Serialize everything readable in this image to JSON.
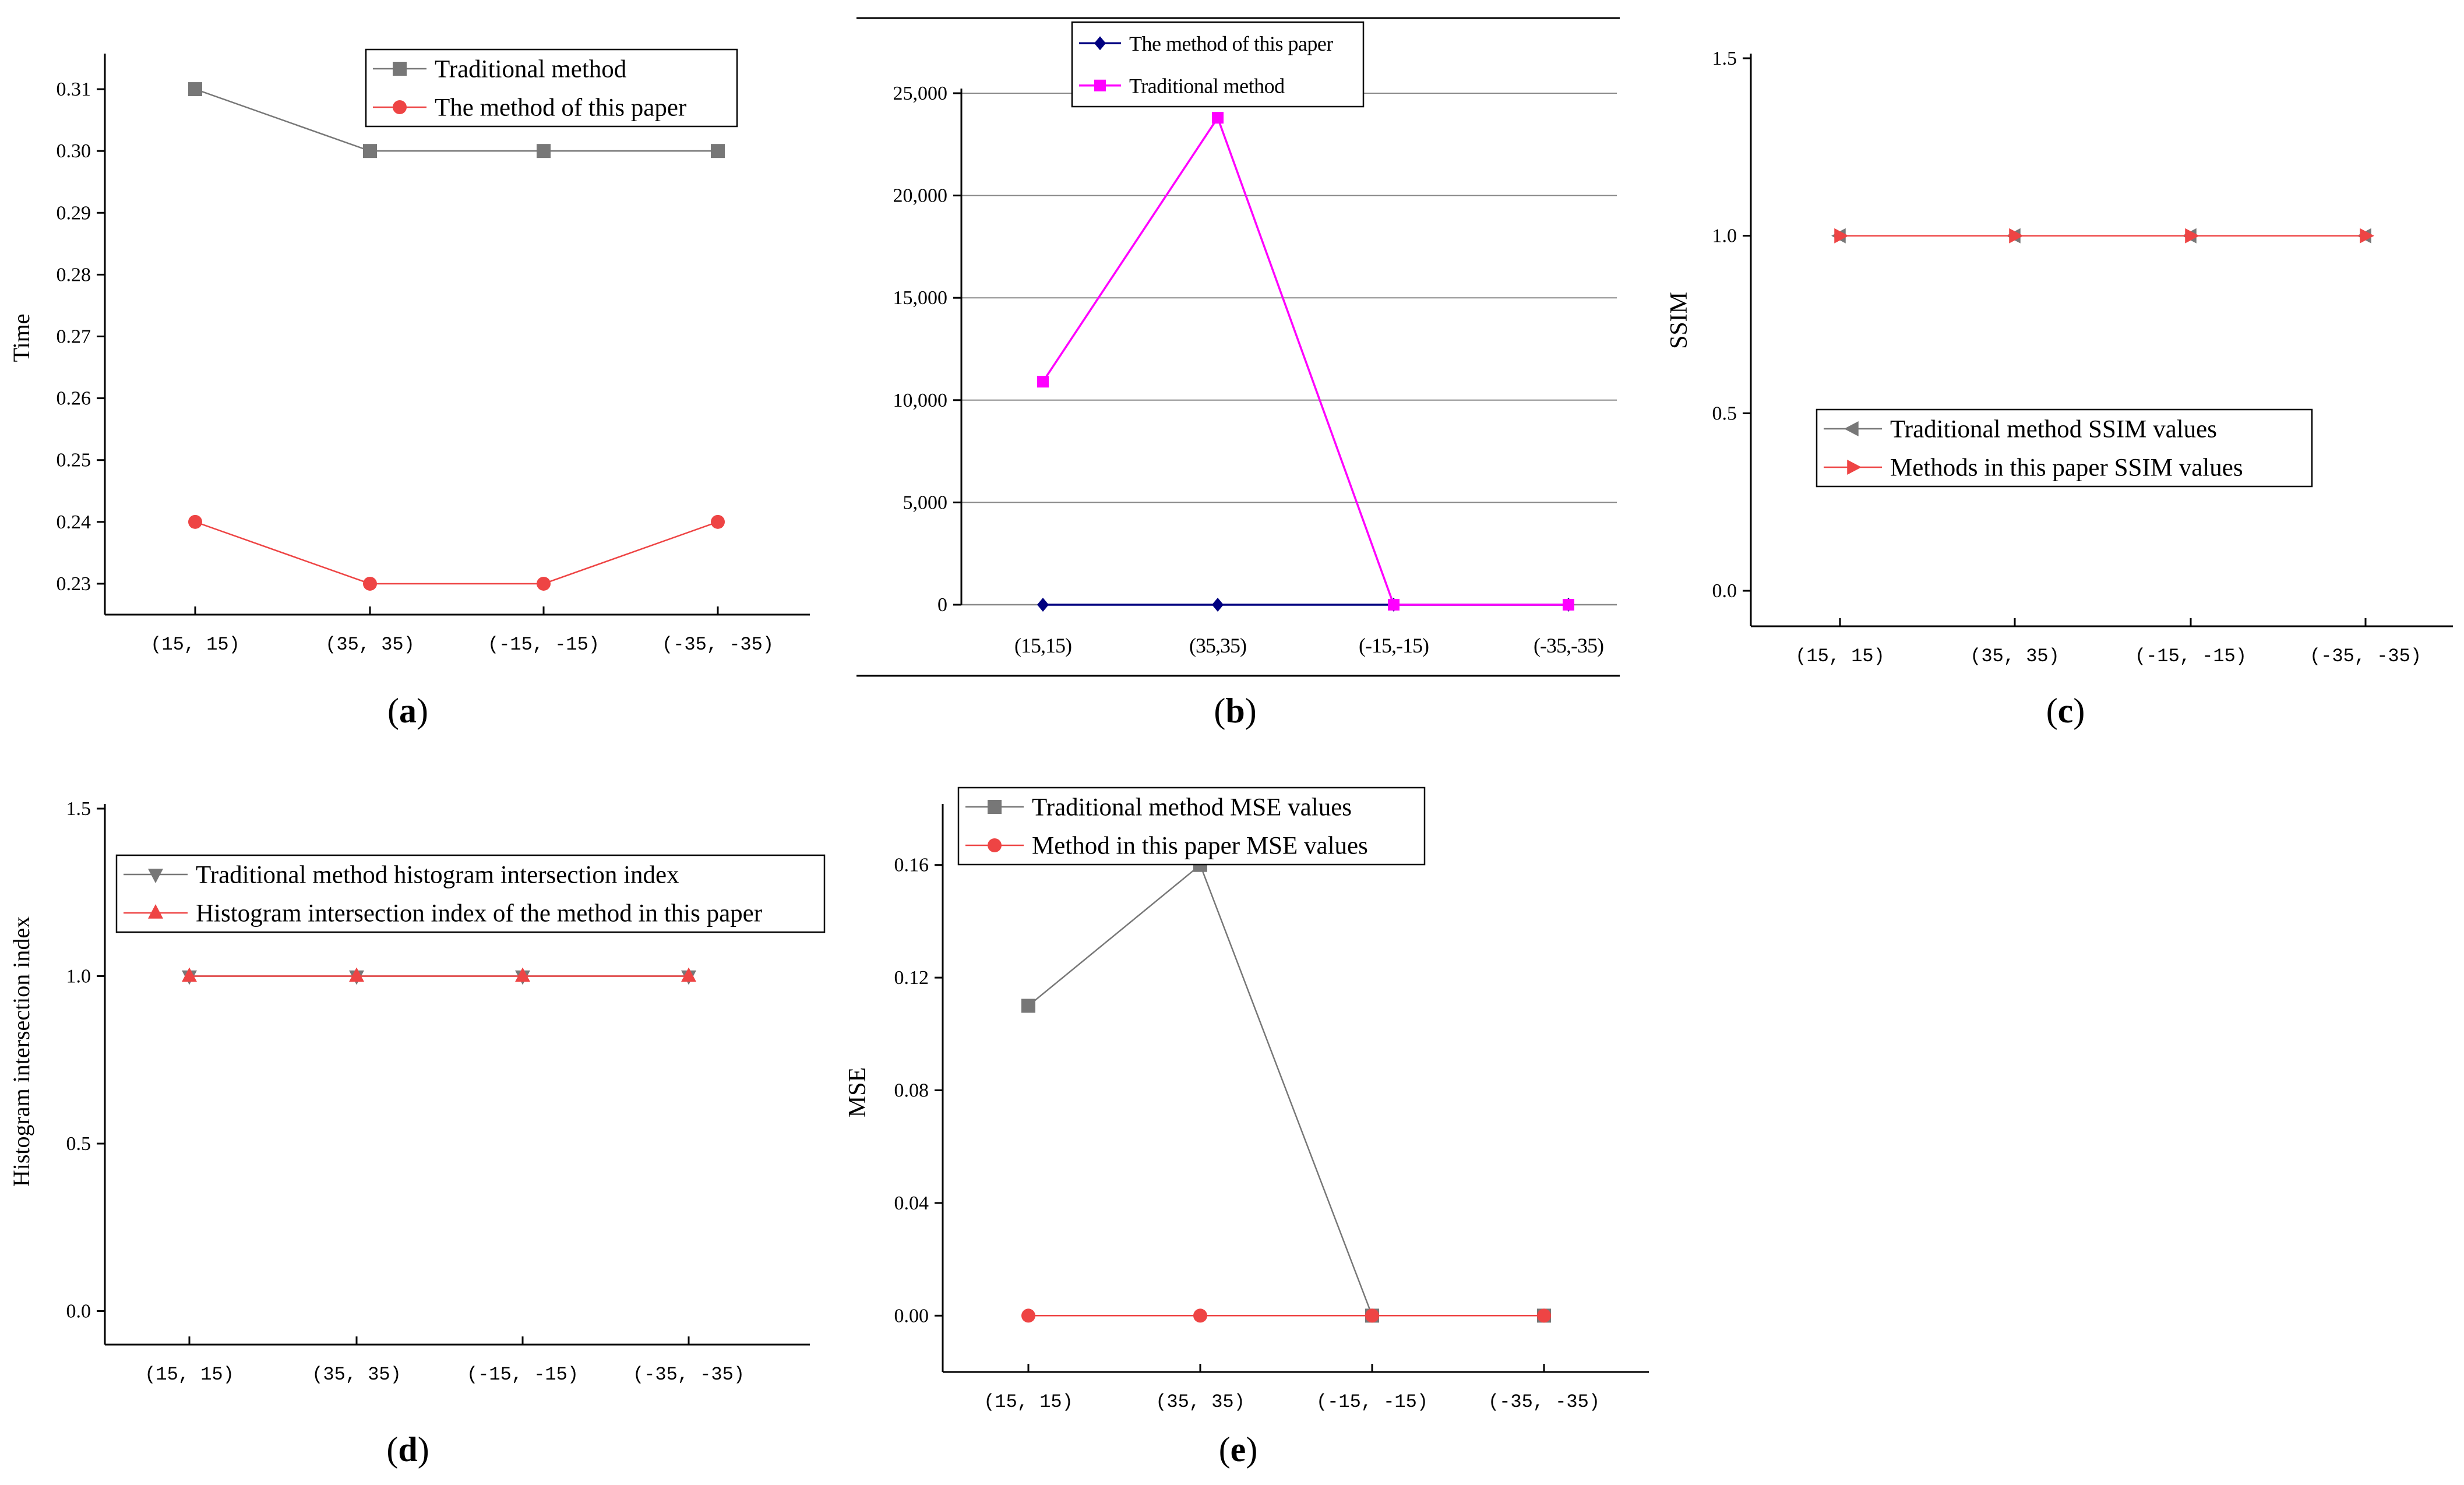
{
  "figure": {
    "panels": [
      {
        "caption": "a"
      },
      {
        "caption": "b"
      },
      {
        "caption": "c"
      },
      {
        "caption": "d"
      },
      {
        "caption": "e"
      }
    ]
  },
  "chart_data": [
    {
      "panel": "a",
      "type": "line",
      "title": "",
      "xlabel": "",
      "ylabel": "Time",
      "categories": [
        "(15, 15)",
        "(35, 35)",
        "(-15, -15)",
        "(-35, -35)"
      ],
      "ylim": [
        0.225,
        0.315
      ],
      "yticks": [
        0.23,
        0.24,
        0.25,
        0.26,
        0.27,
        0.28,
        0.29,
        0.3,
        0.31
      ],
      "ytick_labels": [
        "0.23",
        "0.24",
        "0.25",
        "0.26",
        "0.27",
        "0.28",
        "0.29",
        "0.30",
        "0.31"
      ],
      "grid": false,
      "legend": "top-right",
      "series": [
        {
          "name": "Traditional method",
          "values": [
            0.31,
            0.3,
            0.3,
            0.3
          ],
          "color": "#777777",
          "marker": "square"
        },
        {
          "name": "The method of this paper",
          "values": [
            0.24,
            0.23,
            0.23,
            0.24
          ],
          "color": "#ee4444",
          "marker": "circle"
        }
      ]
    },
    {
      "panel": "b",
      "type": "line",
      "title": "",
      "xlabel": "",
      "ylabel": "",
      "categories": [
        "(15,15)",
        "(35,35)",
        "(-15,-15)",
        "(-35,-35)"
      ],
      "ylim": [
        0,
        25000
      ],
      "yticks": [
        0,
        5000,
        10000,
        15000,
        20000,
        25000
      ],
      "ytick_labels": [
        "0",
        "5,000",
        "10,000",
        "15,000",
        "20,000",
        "25,000"
      ],
      "grid": true,
      "legend": "top",
      "series": [
        {
          "name": "The method of this paper",
          "values": [
            0,
            0,
            0,
            0
          ],
          "color": "#000080",
          "marker": "diamond"
        },
        {
          "name": "Traditional method",
          "values": [
            10900,
            23800,
            0,
            0
          ],
          "color": "#ff00ff",
          "marker": "square"
        }
      ]
    },
    {
      "panel": "c",
      "type": "line",
      "title": "",
      "xlabel": "",
      "ylabel": "SSIM",
      "categories": [
        "(15, 15)",
        "(35, 35)",
        "(-15, -15)",
        "(-35, -35)"
      ],
      "ylim": [
        -0.1,
        1.5
      ],
      "yticks": [
        0.0,
        0.5,
        1.0,
        1.5
      ],
      "ytick_labels": [
        "0.0",
        "0.5",
        "1.0",
        "1.5"
      ],
      "grid": false,
      "legend": "center",
      "series": [
        {
          "name": "Traditional method SSIM values",
          "values": [
            1.0,
            1.0,
            1.0,
            1.0
          ],
          "color": "#777777",
          "marker": "triangle-left"
        },
        {
          "name": "Methods in this paper SSIM values",
          "values": [
            1.0,
            1.0,
            1.0,
            1.0
          ],
          "color": "#ee4444",
          "marker": "triangle-right"
        }
      ]
    },
    {
      "panel": "d",
      "type": "line",
      "title": "",
      "xlabel": "",
      "ylabel": "Histogram intersection index",
      "categories": [
        "(15, 15)",
        "(35, 35)",
        "(-15, -15)",
        "(-35, -35)"
      ],
      "ylim": [
        -0.1,
        1.5
      ],
      "yticks": [
        0.0,
        0.5,
        1.0,
        1.5
      ],
      "ytick_labels": [
        "0.0",
        "0.5",
        "1.0",
        "1.5"
      ],
      "grid": false,
      "legend": "top",
      "series": [
        {
          "name": "Traditional method histogram intersection index",
          "values": [
            1.0,
            1.0,
            1.0,
            1.0
          ],
          "color": "#777777",
          "marker": "triangle-down"
        },
        {
          "name": "Histogram intersection index of the method in this paper",
          "values": [
            1.0,
            1.0,
            1.0,
            1.0
          ],
          "color": "#ee4444",
          "marker": "triangle-up"
        }
      ]
    },
    {
      "panel": "e",
      "type": "line",
      "title": "",
      "xlabel": "",
      "ylabel": "MSE",
      "categories": [
        "(15, 15)",
        "(35, 35)",
        "(-15, -15)",
        "(-35, -35)"
      ],
      "ylim": [
        -0.02,
        0.18
      ],
      "yticks": [
        0.0,
        0.04,
        0.08,
        0.12,
        0.16
      ],
      "ytick_labels": [
        "0.00",
        "0.04",
        "0.08",
        "0.12",
        "0.16"
      ],
      "grid": false,
      "legend": "top-right",
      "series": [
        {
          "name": "Traditional method MSE values",
          "values": [
            0.11,
            0.16,
            0.0,
            0.0
          ],
          "color": "#777777",
          "marker": "square"
        },
        {
          "name": "Method in this paper MSE values",
          "values": [
            0.0,
            0.0,
            0.0,
            0.0
          ],
          "color": "#ee4444",
          "marker": "circle"
        }
      ]
    }
  ]
}
